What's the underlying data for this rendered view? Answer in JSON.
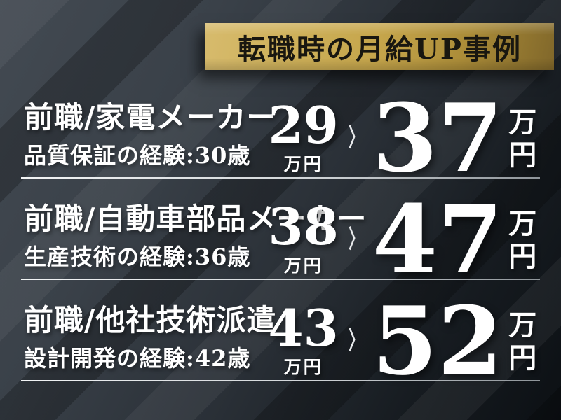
{
  "banner": {
    "title": "転職時の月給UP事例"
  },
  "cases": [
    {
      "title": "前職/家電メーカー",
      "detail": "品質保証の経験:30歳",
      "before_value": "29",
      "before_unit": "万円",
      "arrow": "〉",
      "after_value": "37",
      "after_unit": "万円"
    },
    {
      "title": "前職/自動車部品メーカー",
      "detail": "生産技術の経験:36歳",
      "before_value": "38",
      "before_unit": "万円",
      "arrow": "〉",
      "after_value": "47",
      "after_unit": "万円"
    },
    {
      "title": "前職/他社技術派遣",
      "detail": "設計開発の経験:42歳",
      "before_value": "43",
      "before_unit": "万円",
      "arrow": "〉",
      "after_value": "52",
      "after_unit": "万円"
    }
  ],
  "colors": {
    "background_top_left": "#434a52",
    "background_bottom_right": "#0c1014",
    "stripe_dark": "#22272d",
    "gold_light": "#d7bb6d",
    "gold_dark": "#80672a",
    "banner_text": "#191710",
    "body_text": "#ffffff",
    "divider": "#d9dcdf",
    "arrow": "#e8eaec"
  }
}
